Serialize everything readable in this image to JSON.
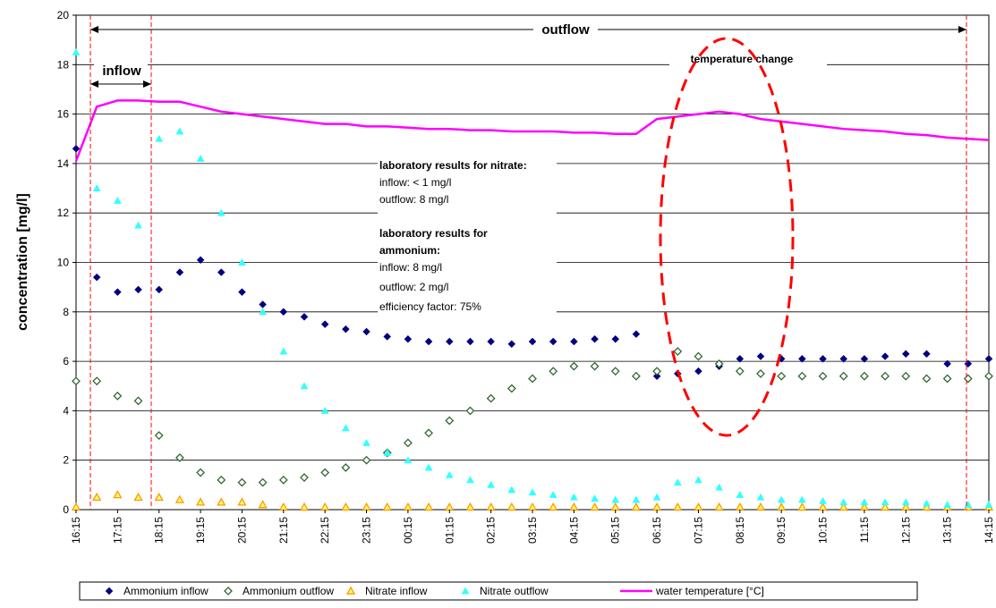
{
  "chart_data": {
    "type": "line",
    "y_label": "concentration [mg/l]",
    "categories": [
      "16:15",
      null,
      "17:15",
      null,
      "18:15",
      null,
      "19:15",
      null,
      "20:15",
      null,
      "21:15",
      null,
      "22:15",
      null,
      "23:15",
      null,
      "00:15",
      null,
      "01:15",
      null,
      "02:15",
      null,
      "03:15",
      null,
      "04:15",
      null,
      "05:15",
      null,
      "06:15",
      null,
      "07:15",
      null,
      "08:15",
      null,
      "09:15",
      null,
      "10:15",
      null,
      "11:15",
      null,
      "12:15",
      null,
      "13:15",
      null,
      "14:15"
    ],
    "ylim": [
      0,
      20
    ],
    "yticks": [
      0,
      2,
      4,
      6,
      8,
      10,
      12,
      14,
      16,
      18,
      20
    ],
    "grid": true,
    "annotations": {
      "outflow": "outflow",
      "inflow": "inflow",
      "temperature": "temperature change",
      "nitrate_title": "laboratory results for nitrate:",
      "nitrate_in": "inflow:   < 1 mg/l",
      "nitrate_out": "outflow:    8 mg/l",
      "ammonium_title1": "laboratory results for",
      "ammonium_title2": "ammonium:",
      "ammonium_in": "inflow:   8 mg/l",
      "ammonium_out": "outflow: 2 mg/l",
      "efficiency": "efficiency factor: 75%"
    },
    "series": [
      {
        "name": "Ammonium inflow",
        "color": "#000080",
        "marker": "diamond",
        "values": [
          14.6,
          9.4,
          8.8,
          8.9,
          8.9,
          9.6,
          10.1,
          9.6,
          8.8,
          8.3,
          8.0,
          7.8,
          7.5,
          7.3,
          7.2,
          7.0,
          6.9,
          6.8,
          6.8,
          6.8,
          6.8,
          6.7,
          6.8,
          6.8,
          6.8,
          6.9,
          6.9,
          7.1,
          5.4,
          5.5,
          5.6,
          5.8,
          6.1,
          6.2,
          6.1,
          6.1,
          6.1,
          6.1,
          6.1,
          6.2,
          6.3,
          6.3,
          5.9,
          5.9,
          6.1
        ]
      },
      {
        "name": "Ammonium outflow",
        "color": "#336633",
        "marker": "diamond-open",
        "values": [
          5.2,
          5.2,
          4.6,
          4.4,
          3.0,
          2.1,
          1.5,
          1.2,
          1.1,
          1.1,
          1.2,
          1.3,
          1.5,
          1.7,
          2.0,
          2.3,
          2.7,
          3.1,
          3.6,
          4.0,
          4.5,
          4.9,
          5.3,
          5.6,
          5.8,
          5.8,
          5.6,
          5.4,
          5.6,
          6.4,
          6.2,
          5.9,
          5.6,
          5.5,
          5.4,
          5.4,
          5.4,
          5.4,
          5.4,
          5.4,
          5.4,
          5.3,
          5.3,
          5.3,
          5.4
        ]
      },
      {
        "name": "Nitrate inflow",
        "color": "#ff9900",
        "marker": "triangle-open",
        "values": [
          0.1,
          0.5,
          0.6,
          0.5,
          0.5,
          0.4,
          0.3,
          0.3,
          0.3,
          0.2,
          0.1,
          0.1,
          0.1,
          0.1,
          0.1,
          0.1,
          0.1,
          0.1,
          0.1,
          0.1,
          0.1,
          0.1,
          0.1,
          0.1,
          0.1,
          0.1,
          0.1,
          0.1,
          0.1,
          0.1,
          0.1,
          0.1,
          0.1,
          0.1,
          0.1,
          0.1,
          0.1,
          0.1,
          0.1,
          0.1,
          0.1,
          0.1,
          0.1,
          0.1,
          0.1
        ]
      },
      {
        "name": "Nitrate outflow",
        "color": "#33ffff",
        "marker": "triangle",
        "values": [
          18.5,
          13.0,
          12.5,
          11.5,
          15.0,
          15.3,
          14.2,
          12.0,
          10.0,
          8.0,
          6.4,
          5.0,
          4.0,
          3.3,
          2.7,
          2.3,
          2.0,
          1.7,
          1.4,
          1.2,
          1.0,
          0.8,
          0.7,
          0.6,
          0.5,
          0.45,
          0.4,
          0.4,
          0.5,
          1.1,
          1.2,
          0.9,
          0.6,
          0.5,
          0.4,
          0.4,
          0.35,
          0.3,
          0.3,
          0.3,
          0.3,
          0.25,
          0.2,
          0.2,
          0.2
        ]
      },
      {
        "name": "water temperature [°C]",
        "color": "#ff00ff",
        "marker": "line",
        "values": [
          14.1,
          16.3,
          16.55,
          16.55,
          16.5,
          16.5,
          16.3,
          16.1,
          16.0,
          15.9,
          15.8,
          15.7,
          15.6,
          15.6,
          15.5,
          15.5,
          15.45,
          15.4,
          15.4,
          15.35,
          15.35,
          15.3,
          15.3,
          15.3,
          15.25,
          15.25,
          15.2,
          15.2,
          15.8,
          15.9,
          16.0,
          16.1,
          16.0,
          15.8,
          15.7,
          15.6,
          15.5,
          15.4,
          15.35,
          15.3,
          15.2,
          15.15,
          15.05,
          15.0,
          14.95
        ]
      }
    ]
  }
}
